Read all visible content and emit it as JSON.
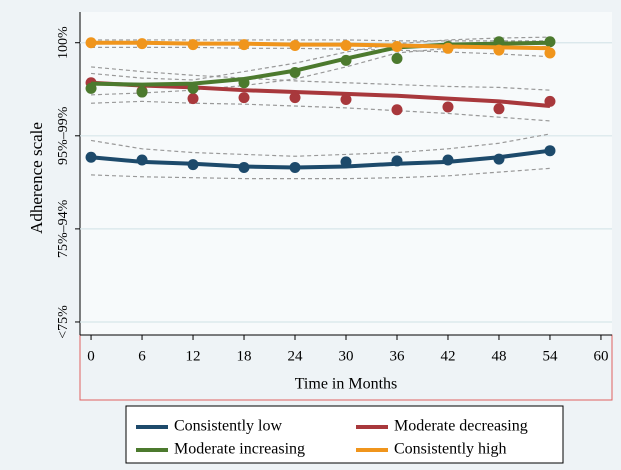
{
  "chart_data": {
    "type": "line",
    "y_label": "Adherence scale",
    "x_label": "Time in Months",
    "x": [
      0,
      6,
      12,
      18,
      24,
      30,
      36,
      42,
      48,
      54
    ],
    "xlim": [
      -1.3,
      61.3
    ],
    "xticks": [
      0,
      6,
      12,
      18,
      24,
      30,
      36,
      42,
      48,
      54,
      60
    ],
    "ylim": [
      0.86,
      4.33
    ],
    "yticks": [
      {
        "value": 1,
        "label": "<75%"
      },
      {
        "value": 2,
        "label": "75%–94%"
      },
      {
        "value": 3,
        "label": "95%–99%"
      },
      {
        "value": 4,
        "label": "100%"
      }
    ],
    "grid": true,
    "legend_position": "bottom",
    "series": [
      {
        "name": "Consistently low",
        "color": "#1d4a6b",
        "values": [
          2.77,
          2.74,
          2.69,
          2.66,
          2.66,
          2.72,
          2.73,
          2.74,
          2.75,
          2.84
        ],
        "fit": [
          2.77,
          2.72,
          2.7,
          2.67,
          2.66,
          2.67,
          2.7,
          2.72,
          2.77,
          2.84
        ],
        "ci_upper": [
          2.95,
          2.86,
          2.82,
          2.8,
          2.78,
          2.8,
          2.82,
          2.86,
          2.92,
          3.02
        ],
        "ci_lower": [
          2.58,
          2.56,
          2.55,
          2.54,
          2.54,
          2.54,
          2.55,
          2.57,
          2.61,
          2.65
        ]
      },
      {
        "name": "Moderate decreasing",
        "color": "#a8383c",
        "values": [
          3.57,
          3.48,
          3.4,
          3.41,
          3.41,
          3.39,
          3.28,
          3.31,
          3.29,
          3.37
        ],
        "fit": [
          3.57,
          3.54,
          3.52,
          3.49,
          3.47,
          3.45,
          3.43,
          3.4,
          3.37,
          3.32
        ],
        "ci_upper": [
          3.74,
          3.69,
          3.65,
          3.62,
          3.59,
          3.57,
          3.55,
          3.53,
          3.52,
          3.49
        ],
        "ci_lower": [
          3.35,
          3.37,
          3.35,
          3.34,
          3.32,
          3.3,
          3.27,
          3.24,
          3.2,
          3.16
        ]
      },
      {
        "name": "Moderate increasing",
        "color": "#4c7a2e",
        "values": [
          3.51,
          3.47,
          3.51,
          3.57,
          3.68,
          3.81,
          3.83,
          3.96,
          4.01,
          4.01
        ],
        "fit": [
          3.56,
          3.55,
          3.56,
          3.61,
          3.7,
          3.83,
          3.95,
          3.98,
          3.99,
          4.0
        ],
        "ci_upper": [
          3.67,
          3.62,
          3.6,
          3.69,
          3.78,
          3.9,
          3.99,
          4.03,
          4.05,
          4.06
        ],
        "ci_lower": [
          3.44,
          3.46,
          3.49,
          3.54,
          3.61,
          3.74,
          3.89,
          3.94,
          3.95,
          3.96
        ]
      },
      {
        "name": "Consistently high",
        "color": "#f0951c",
        "values": [
          4.0,
          3.99,
          3.98,
          3.98,
          3.97,
          3.97,
          3.96,
          3.94,
          3.92,
          3.89
        ],
        "fit": [
          4.0,
          4.0,
          3.99,
          3.99,
          3.98,
          3.98,
          3.97,
          3.96,
          3.95,
          3.94
        ],
        "ci_upper": [
          4.03,
          4.03,
          4.03,
          4.03,
          4.03,
          4.03,
          4.02,
          4.02,
          4.02,
          4.02
        ],
        "ci_lower": [
          3.95,
          3.95,
          3.95,
          3.94,
          3.94,
          3.93,
          3.92,
          3.9,
          3.88,
          3.85
        ]
      }
    ]
  }
}
